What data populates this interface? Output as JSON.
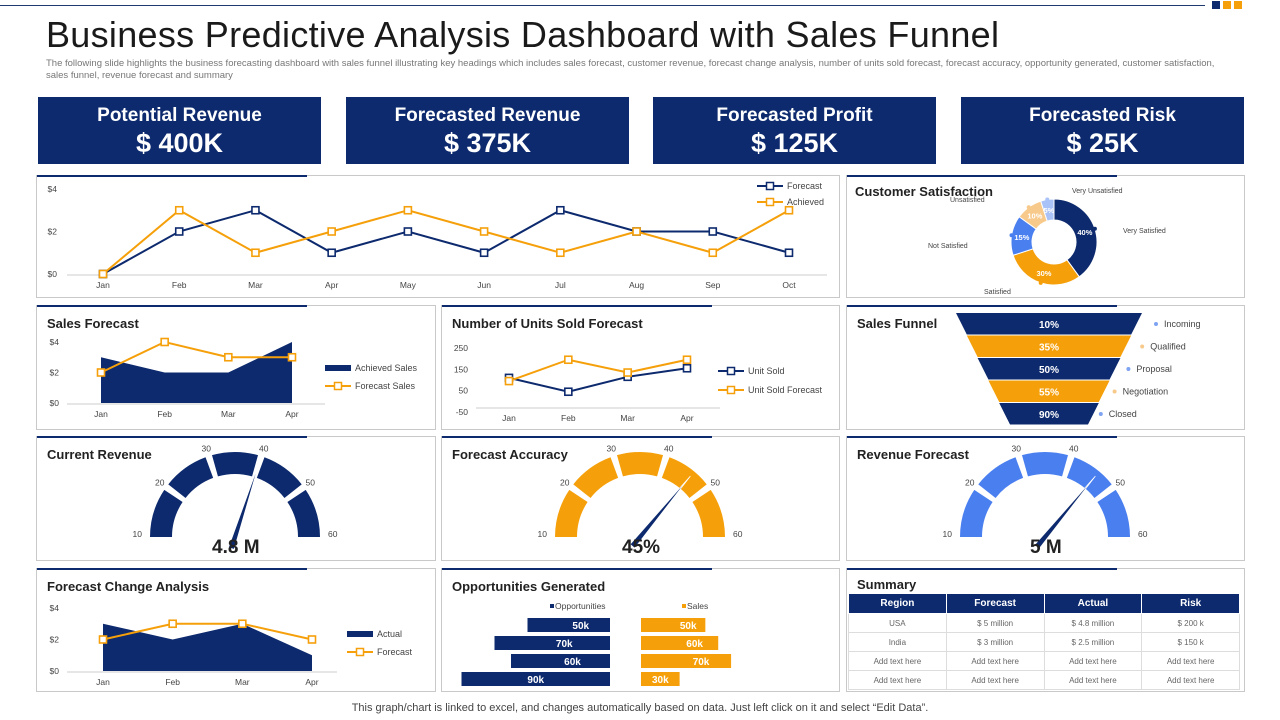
{
  "title": "Business Predictive Analysis Dashboard with Sales Funnel",
  "subtitle": "The following slide highlights the business forecasting dashboard with sales funnel illustrating key headings which includes sales forecast, customer revenue, forecast change analysis, number of units sold forecast, forecast accuracy, opportunity generated, customer satisfaction, sales funnel, revenue forecast and summary",
  "footer": "This graph/chart is linked to excel, and changes automatically based on data. Just left click on it and select “Edit Data”.",
  "colors": {
    "navy": "#0d2a6e",
    "orange": "#f5a00a",
    "blue": "#4a7ff0",
    "dots": [
      "#0d2a6e",
      "#f5a00a",
      "#f5a00a"
    ]
  },
  "kpis": [
    {
      "label": "Potential Revenue",
      "value": "$ 400K"
    },
    {
      "label": "Forecasted Revenue",
      "value": "$ 375K"
    },
    {
      "label": "Forecasted Profit",
      "value": "$ 125K"
    },
    {
      "label": "Forecasted Risk",
      "value": "$ 25K"
    }
  ],
  "panels": {
    "customer_satisfaction": "Customer  Satisfaction",
    "sales_forecast": "Sales Forecast",
    "units_sold": "Number of Units  Sold Forecast",
    "sales_funnel": "Sales Funnel",
    "current_revenue": "Current Revenue",
    "forecast_accuracy": "Forecast Accuracy",
    "revenue_forecast": "Revenue Forecast",
    "forecast_change": "Forecast Change Analysis",
    "opportunities": "Opportunities  Generated",
    "summary": "Summary"
  },
  "gauge_values": {
    "current_revenue": "4.8 M",
    "forecast_accuracy": "45%",
    "revenue_forecast": "5 M"
  },
  "summary_table": {
    "headers": [
      "Region",
      "Forecast",
      "Actual",
      "Risk"
    ],
    "rows": [
      [
        "USA",
        "$ 5 million",
        "$ 4.8 million",
        "$ 200 k"
      ],
      [
        "India",
        "$ 3 million",
        "$ 2.5 million",
        "$ 150 k"
      ],
      [
        "Add text here",
        "Add text here",
        "Add text here",
        "Add text here"
      ],
      [
        "Add text here",
        "Add text here",
        "Add text here",
        "Add text here"
      ]
    ]
  },
  "chart_data": [
    {
      "id": "main-line",
      "type": "line",
      "categories": [
        "Jan",
        "Feb",
        "Mar",
        "Apr",
        "May",
        "Jun",
        "Jul",
        "Aug",
        "Sep",
        "Oct"
      ],
      "series": [
        {
          "name": "Forecast",
          "values": [
            0,
            2,
            3,
            1,
            2,
            1,
            3,
            2,
            2,
            1
          ]
        },
        {
          "name": "Achieved",
          "values": [
            0,
            3,
            1,
            2,
            3,
            2,
            1,
            2,
            1,
            3
          ]
        }
      ],
      "yticks": [
        "$0",
        "$2",
        "$4"
      ],
      "ylim": [
        0,
        4
      ]
    },
    {
      "id": "sales-forecast",
      "type": "area",
      "categories": [
        "Jan",
        "Feb",
        "Mar",
        "Apr"
      ],
      "series": [
        {
          "name": "Achieved Sales",
          "values": [
            3,
            2,
            2,
            4
          ]
        },
        {
          "name": "Forecast Sales",
          "values": [
            2,
            4,
            3,
            3
          ]
        }
      ],
      "yticks": [
        "$0",
        "$2",
        "$4"
      ],
      "ylim": [
        0,
        4
      ]
    },
    {
      "id": "units-sold",
      "type": "line",
      "categories": [
        "Jan",
        "Feb",
        "Mar",
        "Apr"
      ],
      "series": [
        {
          "name": "Unit Sold",
          "values": [
            110,
            45,
            115,
            155
          ]
        },
        {
          "name": "Unit Sold Forecast",
          "values": [
            95,
            195,
            135,
            195
          ]
        }
      ],
      "yticks": [
        "250",
        "150",
        "50",
        "-50"
      ],
      "ylim": [
        -50,
        250
      ]
    },
    {
      "id": "forecast-change",
      "type": "area",
      "categories": [
        "Jan",
        "Feb",
        "Mar",
        "Apr"
      ],
      "series": [
        {
          "name": "Actual",
          "values": [
            3,
            2,
            3,
            1
          ]
        },
        {
          "name": "Forecast",
          "values": [
            2,
            3,
            3,
            2
          ]
        }
      ],
      "yticks": [
        "$0",
        "$2",
        "$4"
      ],
      "ylim": [
        0,
        4
      ]
    },
    {
      "id": "customer-satisfaction",
      "type": "pie",
      "labels": [
        "Very Satisfied",
        "Satisfied",
        "Not Satisfied",
        "Unsatisfied",
        "Very Unsatisfied"
      ],
      "values": [
        40,
        30,
        15,
        10,
        5
      ],
      "value_labels": [
        "40%",
        "30%",
        "15%",
        "10%",
        "5%"
      ],
      "colors": [
        "#0d2a6e",
        "#f5a00a",
        "#4a7ff0",
        "#f7c98a",
        "#a9c2f7"
      ]
    },
    {
      "id": "sales-funnel",
      "type": "bar",
      "categories": [
        "Incoming",
        "Qualified",
        "Proposal",
        "Negotiation",
        "Closed"
      ],
      "values": [
        10,
        35,
        50,
        55,
        90
      ],
      "value_labels": [
        "10%",
        "35%",
        "50%",
        "55%",
        "90%"
      ]
    },
    {
      "id": "opportunities-generated",
      "type": "bar",
      "series": [
        {
          "name": "Opportunities",
          "labels": [
            "50k",
            "70k",
            "60k",
            "90k"
          ],
          "values": [
            50,
            70,
            60,
            90
          ]
        },
        {
          "name": "Sales",
          "labels": [
            "50k",
            "60k",
            "70k",
            "30k"
          ],
          "values": [
            50,
            60,
            70,
            30
          ]
        }
      ]
    },
    {
      "id": "gauges",
      "type": "gauge",
      "ticks": [
        "10",
        "20",
        "30",
        "40",
        "50",
        "60"
      ],
      "items": [
        {
          "name": "Current Revenue",
          "value": 4.8
        },
        {
          "name": "Forecast Accuracy",
          "value": 45
        },
        {
          "name": "Revenue Forecast",
          "value": 5
        }
      ]
    }
  ]
}
